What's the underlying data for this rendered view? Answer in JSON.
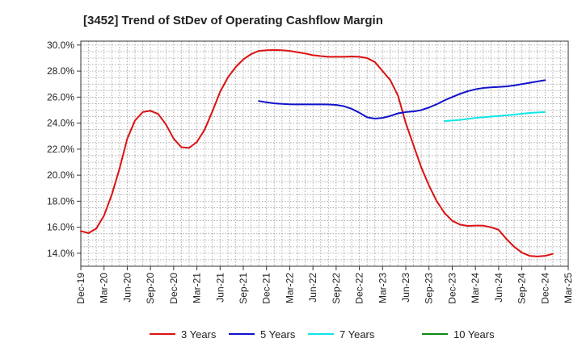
{
  "chart_data": {
    "type": "line",
    "title": "[3452]  Trend of StDev of Operating Cashflow Margin",
    "xlabel": "",
    "ylabel": "",
    "x_ticks": [
      "Dec-19",
      "Mar-20",
      "Jun-20",
      "Sep-20",
      "Dec-20",
      "Mar-21",
      "Jun-21",
      "Sep-21",
      "Dec-21",
      "Mar-22",
      "Jun-22",
      "Sep-22",
      "Dec-22",
      "Mar-23",
      "Jun-23",
      "Sep-23",
      "Dec-23",
      "Mar-24",
      "Jun-24",
      "Sep-24",
      "Dec-24",
      "Mar-25"
    ],
    "y_ticks": [
      "14.0%",
      "16.0%",
      "18.0%",
      "20.0%",
      "22.0%",
      "24.0%",
      "26.0%",
      "28.0%",
      "30.0%"
    ],
    "ylim": [
      13.0,
      30.3
    ],
    "y_unit": "%",
    "grid": true,
    "legend_position": "bottom",
    "series": [
      {
        "name": "3 Years",
        "color": "#dd1111",
        "points": [
          [
            "Dec-19",
            15.7
          ],
          [
            "Jan-20",
            15.55
          ],
          [
            "Feb-20",
            15.9
          ],
          [
            "Mar-20",
            16.9
          ],
          [
            "Apr-20",
            18.5
          ],
          [
            "May-20",
            20.5
          ],
          [
            "Jun-20",
            22.8
          ],
          [
            "Jul-20",
            24.2
          ],
          [
            "Aug-20",
            24.85
          ],
          [
            "Sep-20",
            24.95
          ],
          [
            "Oct-20",
            24.7
          ],
          [
            "Nov-20",
            23.9
          ],
          [
            "Dec-20",
            22.8
          ],
          [
            "Jan-21",
            22.15
          ],
          [
            "Feb-21",
            22.1
          ],
          [
            "Mar-21",
            22.55
          ],
          [
            "Apr-21",
            23.5
          ],
          [
            "May-21",
            24.9
          ],
          [
            "Jun-21",
            26.4
          ],
          [
            "Jul-21",
            27.5
          ],
          [
            "Aug-21",
            28.3
          ],
          [
            "Sep-21",
            28.9
          ],
          [
            "Oct-21",
            29.3
          ],
          [
            "Nov-21",
            29.55
          ],
          [
            "Dec-21",
            29.6
          ],
          [
            "Jan-22",
            29.62
          ],
          [
            "Feb-22",
            29.6
          ],
          [
            "Mar-22",
            29.55
          ],
          [
            "Apr-22",
            29.45
          ],
          [
            "May-22",
            29.35
          ],
          [
            "Jun-22",
            29.22
          ],
          [
            "Jul-22",
            29.15
          ],
          [
            "Aug-22",
            29.1
          ],
          [
            "Sep-22",
            29.1
          ],
          [
            "Oct-22",
            29.1
          ],
          [
            "Nov-22",
            29.12
          ],
          [
            "Dec-22",
            29.1
          ],
          [
            "Jan-23",
            29.0
          ],
          [
            "Feb-23",
            28.7
          ],
          [
            "Mar-23",
            28.0
          ],
          [
            "Apr-23",
            27.3
          ],
          [
            "May-23",
            26.1
          ],
          [
            "Jun-23",
            24.0
          ],
          [
            "Jul-23",
            22.3
          ],
          [
            "Aug-23",
            20.6
          ],
          [
            "Sep-23",
            19.2
          ],
          [
            "Oct-23",
            18.0
          ],
          [
            "Nov-23",
            17.1
          ],
          [
            "Dec-23",
            16.5
          ],
          [
            "Jan-24",
            16.2
          ],
          [
            "Feb-24",
            16.1
          ],
          [
            "Mar-24",
            16.12
          ],
          [
            "Apr-24",
            16.12
          ],
          [
            "May-24",
            16.0
          ],
          [
            "Jun-24",
            15.8
          ],
          [
            "Jul-24",
            15.1
          ],
          [
            "Aug-24",
            14.5
          ],
          [
            "Sep-24",
            14.05
          ],
          [
            "Oct-24",
            13.8
          ],
          [
            "Nov-24",
            13.75
          ],
          [
            "Dec-24",
            13.8
          ],
          [
            "Jan-25",
            13.95
          ]
        ]
      },
      {
        "name": "5 Years",
        "color": "#1111cc",
        "points": [
          [
            "Nov-21",
            25.7
          ],
          [
            "Dec-21",
            25.6
          ],
          [
            "Jan-22",
            25.52
          ],
          [
            "Feb-22",
            25.48
          ],
          [
            "Mar-22",
            25.45
          ],
          [
            "Apr-22",
            25.44
          ],
          [
            "May-22",
            25.44
          ],
          [
            "Jun-22",
            25.44
          ],
          [
            "Jul-22",
            25.44
          ],
          [
            "Aug-22",
            25.43
          ],
          [
            "Sep-22",
            25.4
          ],
          [
            "Oct-22",
            25.3
          ],
          [
            "Nov-22",
            25.1
          ],
          [
            "Dec-22",
            24.8
          ],
          [
            "Jan-23",
            24.45
          ],
          [
            "Feb-23",
            24.35
          ],
          [
            "Mar-23",
            24.4
          ],
          [
            "Apr-23",
            24.55
          ],
          [
            "May-23",
            24.75
          ],
          [
            "Jun-23",
            24.85
          ],
          [
            "Jul-23",
            24.9
          ],
          [
            "Aug-23",
            25.0
          ],
          [
            "Sep-23",
            25.2
          ],
          [
            "Oct-23",
            25.45
          ],
          [
            "Nov-23",
            25.75
          ],
          [
            "Dec-23",
            26.0
          ],
          [
            "Jan-24",
            26.25
          ],
          [
            "Feb-24",
            26.45
          ],
          [
            "Mar-24",
            26.6
          ],
          [
            "Apr-24",
            26.7
          ],
          [
            "May-24",
            26.75
          ],
          [
            "Jun-24",
            26.78
          ],
          [
            "Jul-24",
            26.82
          ],
          [
            "Aug-24",
            26.9
          ],
          [
            "Sep-24",
            27.0
          ],
          [
            "Oct-24",
            27.1
          ],
          [
            "Nov-24",
            27.2
          ],
          [
            "Dec-24",
            27.3
          ]
        ]
      },
      {
        "name": "7 Years",
        "color": "#11e5e5",
        "points": [
          [
            "Nov-23",
            24.15
          ],
          [
            "Dec-23",
            24.2
          ],
          [
            "Jan-24",
            24.25
          ],
          [
            "Feb-24",
            24.32
          ],
          [
            "Mar-24",
            24.4
          ],
          [
            "Apr-24",
            24.45
          ],
          [
            "May-24",
            24.5
          ],
          [
            "Jun-24",
            24.55
          ],
          [
            "Jul-24",
            24.6
          ],
          [
            "Aug-24",
            24.65
          ],
          [
            "Sep-24",
            24.72
          ],
          [
            "Oct-24",
            24.78
          ],
          [
            "Nov-24",
            24.82
          ],
          [
            "Dec-24",
            24.85
          ]
        ]
      },
      {
        "name": "10 Years",
        "color": "#118811",
        "points": []
      }
    ]
  }
}
